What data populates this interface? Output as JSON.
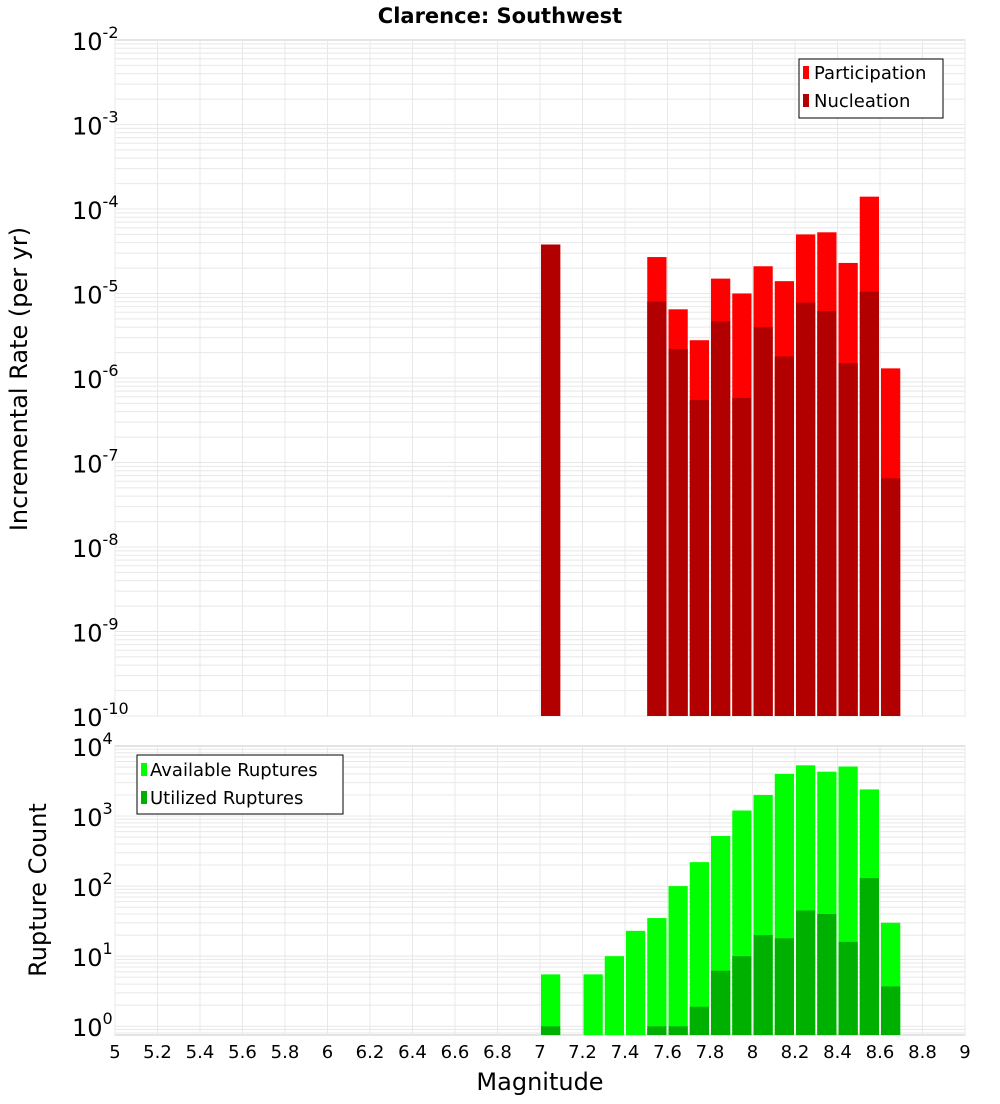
{
  "title": "Clarence: Southwest",
  "colors": {
    "participation": "#ff0000",
    "nucleation": "#b20000",
    "available": "#00ff00",
    "utilized": "#00b000",
    "grid": "#e8e8e8",
    "frame": "#c8c8c8"
  },
  "chart_data": [
    {
      "type": "bar",
      "id": "rate",
      "title": "Clarence: Southwest",
      "xlabel": "",
      "ylabel": "Incremental Rate (per yr)",
      "yscale": "log",
      "ylim": [
        1e-10,
        0.01
      ],
      "xlim": [
        5,
        9
      ],
      "y_tick_exponents": [
        "-10",
        "-9",
        "-8",
        "-7",
        "-6",
        "-5",
        "-4",
        "-3",
        "-2"
      ],
      "y_tick_base": "10",
      "legend_position": "top-right",
      "bar_width": 0.1,
      "series": [
        {
          "name": "Participation",
          "x": [
            7.05,
            7.55,
            7.65,
            7.75,
            7.85,
            7.95,
            8.05,
            8.15,
            8.25,
            8.35,
            8.45,
            8.55,
            8.65
          ],
          "values": [
            3.8e-05,
            2.7e-05,
            6.5e-06,
            2.8e-06,
            1.5e-05,
            1e-05,
            2.1e-05,
            1.4e-05,
            5e-05,
            5.3e-05,
            2.3e-05,
            0.00014,
            1.3e-06
          ]
        },
        {
          "name": "Nucleation",
          "x": [
            7.05,
            7.55,
            7.65,
            7.75,
            7.85,
            7.95,
            8.05,
            8.15,
            8.25,
            8.35,
            8.45,
            8.55,
            8.65
          ],
          "values": [
            3.8e-05,
            8e-06,
            2.2e-06,
            5.5e-07,
            4.7e-06,
            5.8e-07,
            4e-06,
            1.8e-06,
            7.8e-06,
            6.2e-06,
            1.5e-06,
            1.05e-05,
            6.5e-08
          ]
        }
      ]
    },
    {
      "type": "bar",
      "id": "count",
      "xlabel": "Magnitude",
      "ylabel": "Rupture Count",
      "yscale": "log",
      "ylim": [
        0.75,
        10000
      ],
      "xlim": [
        5,
        9
      ],
      "y_tick_exponents": [
        "0",
        "1",
        "2",
        "3",
        "4"
      ],
      "y_tick_base": "10",
      "x_ticks": [
        "5",
        "5.2",
        "5.4",
        "5.6",
        "5.8",
        "6",
        "6.2",
        "6.4",
        "6.6",
        "6.8",
        "7",
        "7.2",
        "7.4",
        "7.6",
        "7.8",
        "8",
        "8.2",
        "8.4",
        "8.6",
        "8.8",
        "9"
      ],
      "legend_position": "top-left",
      "bar_width": 0.1,
      "series": [
        {
          "name": "Available Ruptures",
          "x": [
            7.05,
            7.25,
            7.35,
            7.45,
            7.55,
            7.65,
            7.75,
            7.85,
            7.95,
            8.05,
            8.15,
            8.25,
            8.35,
            8.45,
            8.55,
            8.65
          ],
          "values": [
            5.5,
            5.5,
            10,
            23,
            35,
            100,
            220,
            520,
            1200,
            2000,
            4000,
            5300,
            4300,
            5100,
            2400,
            30
          ]
        },
        {
          "name": "Utilized Ruptures",
          "x": [
            7.05,
            7.55,
            7.65,
            7.75,
            7.85,
            7.95,
            8.05,
            8.15,
            8.25,
            8.35,
            8.45,
            8.55,
            8.65
          ],
          "values": [
            1,
            1,
            1,
            1.9,
            6.2,
            10,
            20,
            18,
            45,
            40,
            16,
            130,
            3.7
          ]
        }
      ]
    }
  ]
}
